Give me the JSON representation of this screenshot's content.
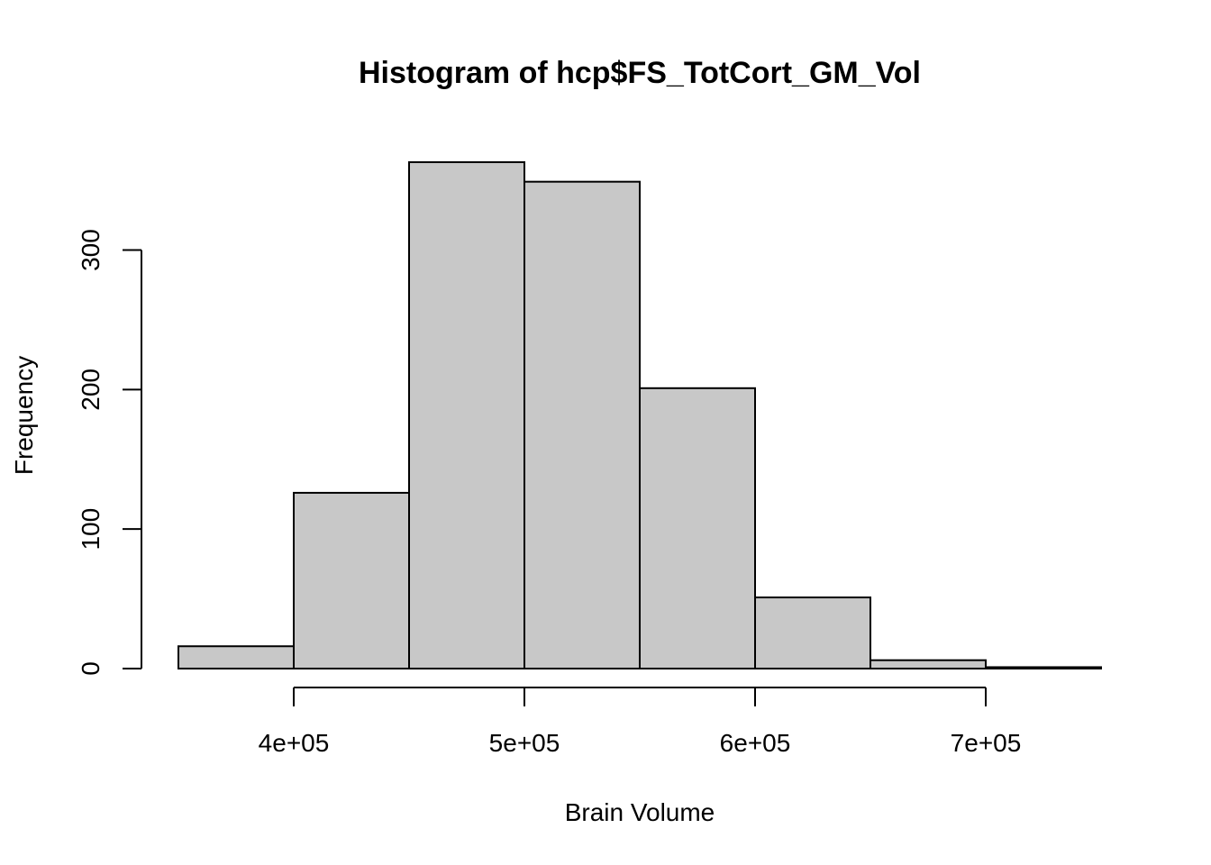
{
  "chart_data": {
    "type": "bar",
    "title": "Histogram of hcp$FS_TotCort_GM_Vol",
    "xlabel": "Brain Volume",
    "ylabel": "Frequency",
    "bins": [
      {
        "start": 350000,
        "end": 400000,
        "count": 16
      },
      {
        "start": 400000,
        "end": 450000,
        "count": 126
      },
      {
        "start": 450000,
        "end": 500000,
        "count": 363
      },
      {
        "start": 500000,
        "end": 550000,
        "count": 349
      },
      {
        "start": 550000,
        "end": 600000,
        "count": 201
      },
      {
        "start": 600000,
        "end": 650000,
        "count": 51
      },
      {
        "start": 650000,
        "end": 700000,
        "count": 6
      },
      {
        "start": 700000,
        "end": 750000,
        "count": 1
      }
    ],
    "xlim": [
      350000,
      750000
    ],
    "ylim": [
      0,
      363
    ],
    "x_ticks": [
      {
        "value": 400000,
        "label": "4e+05"
      },
      {
        "value": 500000,
        "label": "5e+05"
      },
      {
        "value": 600000,
        "label": "6e+05"
      },
      {
        "value": 700000,
        "label": "7e+05"
      }
    ],
    "y_ticks": [
      {
        "value": 0,
        "label": "0"
      },
      {
        "value": 100,
        "label": "100"
      },
      {
        "value": 200,
        "label": "200"
      },
      {
        "value": 300,
        "label": "300"
      }
    ],
    "grid": false,
    "colors": {
      "bar_fill": "#c8c8c8",
      "bar_stroke": "#000000"
    }
  }
}
